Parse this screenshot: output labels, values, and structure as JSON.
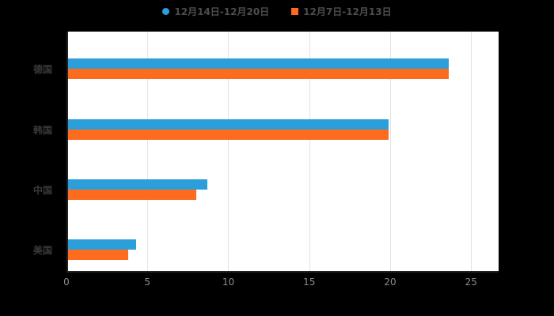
{
  "colors": {
    "series_blue": "#2C9FDB",
    "series_orange": "#FC6B1E",
    "plot_bg": "#ffffff",
    "page_bg": "#000000",
    "gridline": "#e3e3e3",
    "axis": "#222222"
  },
  "legend": {
    "items": [
      {
        "label": "12月14日-12月20日",
        "marker": "circle",
        "color": "#2C9FDB"
      },
      {
        "label": "12月7日-12月13日",
        "marker": "square",
        "color": "#FC6B1E"
      }
    ]
  },
  "chart_data": {
    "type": "bar",
    "orientation": "horizontal",
    "title": "",
    "xlabel": "",
    "ylabel": "",
    "categories": [
      "德国",
      "韩国",
      "中国",
      "美国"
    ],
    "series": [
      {
        "name": "12月14日-12月20日",
        "color": "#2C9FDB",
        "values": [
          23.5,
          19.8,
          8.6,
          4.2
        ]
      },
      {
        "name": "12月7日-12月13日",
        "color": "#FC6B1E",
        "values": [
          23.5,
          19.8,
          7.9,
          3.7
        ]
      }
    ],
    "xlim": [
      0,
      26.7
    ],
    "xticks": [
      0,
      5,
      10,
      15,
      20,
      25
    ],
    "grid": true,
    "legend_position": "top"
  }
}
